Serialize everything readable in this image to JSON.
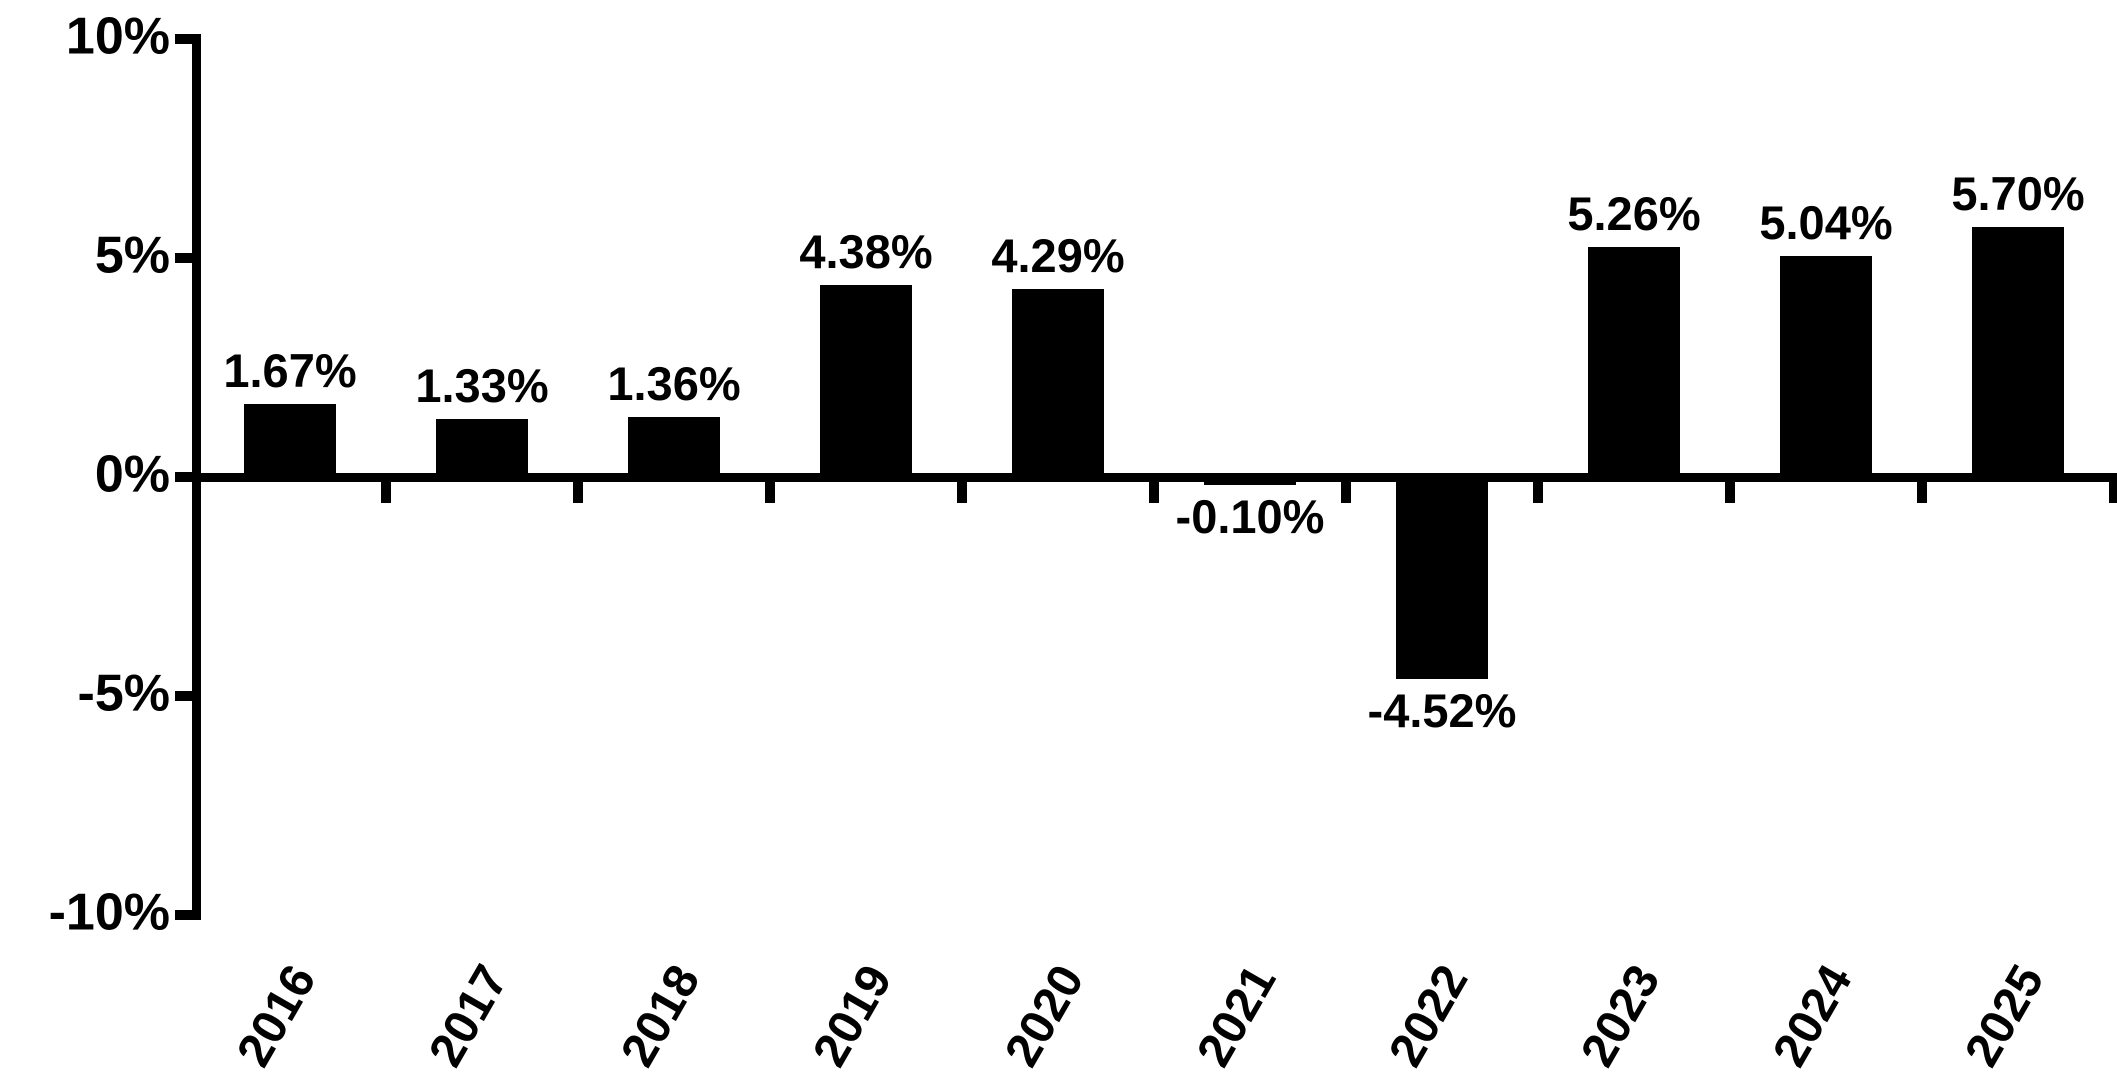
{
  "chart_data": {
    "type": "bar",
    "title": "",
    "xlabel": "",
    "ylabel": "",
    "categories": [
      "2016",
      "2017",
      "2018",
      "2019",
      "2020",
      "2021",
      "2022",
      "2023",
      "2024",
      "2025"
    ],
    "values": [
      1.67,
      1.33,
      1.36,
      4.38,
      4.29,
      -0.1,
      -4.52,
      5.26,
      5.04,
      5.7
    ],
    "value_labels": [
      "1.67%",
      "1.33%",
      "1.36%",
      "4.38%",
      "4.29%",
      "-0.10%",
      "-4.52%",
      "5.26%",
      "5.04%",
      "5.70%"
    ],
    "yticks": [
      {
        "value": 10,
        "label": "10%"
      },
      {
        "value": 5,
        "label": "5%"
      },
      {
        "value": 0,
        "label": "0%"
      },
      {
        "value": -5,
        "label": "-5%"
      },
      {
        "value": -10,
        "label": "-10%"
      }
    ],
    "ylim": [
      -10,
      10
    ],
    "grid": false,
    "legend": null,
    "bar_color": "#000000",
    "axis_color": "#000000",
    "background_color": "#ffffff",
    "x_tick_style": "category-boundaries",
    "x_label_rotation_deg": 60
  }
}
